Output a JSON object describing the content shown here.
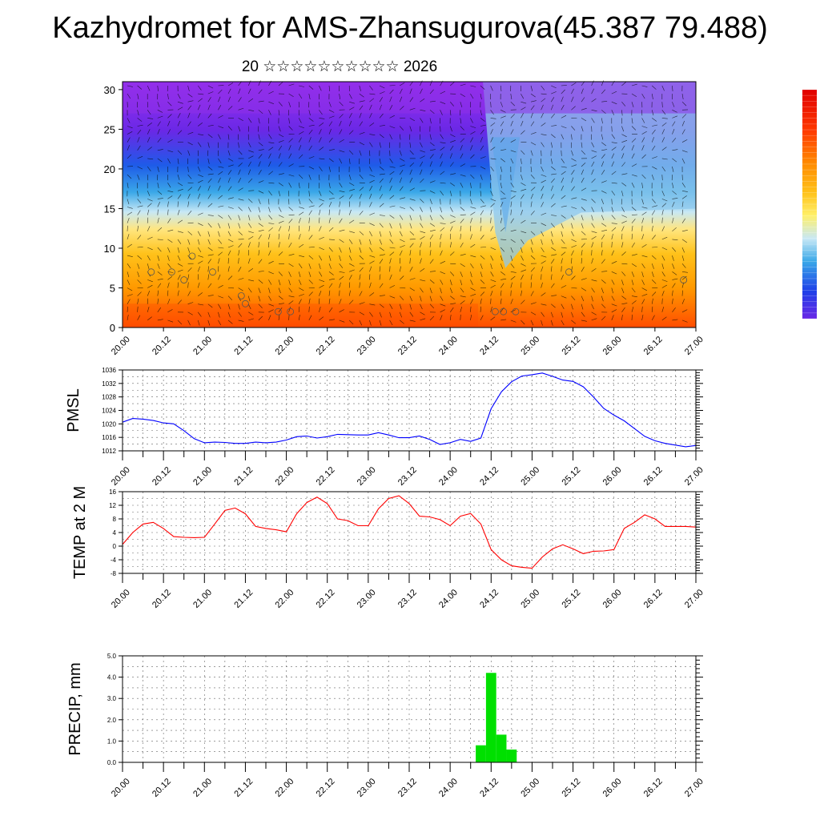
{
  "header": {
    "title": "Kazhydromet for AMS-Zhansugurova(45.387 79.488)",
    "subtitle": "20 ☆☆☆☆☆☆☆☆☆☆ 2026"
  },
  "time_labels": [
    "20.00",
    "20.12",
    "21.00",
    "21.12",
    "22.00",
    "22.12",
    "23.00",
    "23.12",
    "24.00",
    "24.12",
    "25.00",
    "25.12",
    "26.00",
    "26.12",
    "27.00"
  ],
  "colors": {
    "pmsl_line": "#0000ff",
    "temp_line": "#ff0000",
    "precip_bar": "#00e000"
  },
  "chart_data": [
    {
      "type": "heatmap",
      "name": "cross-section",
      "x": [
        "20.00",
        "20.12",
        "21.00",
        "21.12",
        "22.00",
        "22.12",
        "23.00",
        "23.12",
        "24.00",
        "24.12",
        "25.00",
        "25.12",
        "26.00",
        "26.12",
        "27.00"
      ],
      "y_ticks": [
        0,
        5,
        10,
        15,
        20,
        25,
        30
      ],
      "ylim": [
        0,
        31
      ],
      "colorscale": [
        "#ff4d00",
        "#ff9900",
        "#ffc21a",
        "#ffe680",
        "#c8e8f5",
        "#3aa8e8",
        "#1e5be8",
        "#6a28e6",
        "#9a30ee"
      ],
      "colorbar": true,
      "overlay": "wind barbs"
    },
    {
      "type": "line",
      "ylabel": "PMSL",
      "ylim": [
        1012,
        1036
      ],
      "y_ticks": [
        1012,
        1016,
        1020,
        1024,
        1028,
        1032,
        1036
      ],
      "x": [
        0,
        3,
        6,
        9,
        12,
        15,
        18,
        21,
        24,
        27,
        30,
        33,
        36,
        39,
        42,
        45,
        48,
        51,
        54,
        57,
        60,
        63,
        66,
        69,
        72,
        75,
        78,
        81,
        84,
        87,
        90,
        93,
        96,
        99,
        102,
        105,
        108,
        111,
        114,
        117,
        120,
        123,
        126,
        129,
        132,
        135,
        138,
        141,
        144,
        147,
        150,
        153,
        156,
        159,
        162,
        165,
        168
      ],
      "values": [
        1020.5,
        1021.6,
        1021.4,
        1021,
        1020.3,
        1020,
        1018,
        1015.6,
        1014.4,
        1014.6,
        1014.5,
        1014.2,
        1014.2,
        1014.6,
        1014.4,
        1014.6,
        1015.2,
        1016.2,
        1016.4,
        1015.8,
        1016.2,
        1016.9,
        1016.8,
        1016.7,
        1016.7,
        1017.4,
        1016.7,
        1015.9,
        1015.9,
        1016.4,
        1015.4,
        1013.9,
        1014.4,
        1015.4,
        1014.8,
        1015.8,
        1024.5,
        1029.5,
        1032.5,
        1034.2,
        1034.6,
        1035.1,
        1034.1,
        1033,
        1032.6,
        1031,
        1028,
        1024.6,
        1022.6,
        1020.9,
        1018.6,
        1016.3,
        1015,
        1014.2,
        1013.7,
        1013.2,
        1013.6
      ]
    },
    {
      "type": "line",
      "ylabel": "TEMP at 2 M",
      "ylim": [
        -8,
        16
      ],
      "y_ticks": [
        -8,
        -4,
        0,
        4,
        8,
        12,
        16
      ],
      "x": [
        0,
        3,
        6,
        9,
        12,
        15,
        18,
        21,
        24,
        27,
        30,
        33,
        36,
        39,
        42,
        45,
        48,
        51,
        54,
        57,
        60,
        63,
        66,
        69,
        72,
        75,
        78,
        81,
        84,
        87,
        90,
        93,
        96,
        99,
        102,
        105,
        108,
        111,
        114,
        117,
        120,
        123,
        126,
        129,
        132,
        135,
        138,
        141,
        144,
        147,
        150,
        153,
        156,
        159,
        162,
        165,
        168
      ],
      "values": [
        0.5,
        4,
        6.5,
        7,
        5.2,
        2.8,
        2.6,
        2.5,
        2.6,
        6.5,
        10.5,
        11.2,
        9.5,
        5.8,
        5.2,
        4.8,
        4.2,
        9.5,
        12.8,
        14.4,
        12.5,
        8,
        7.5,
        6,
        6,
        11,
        14,
        14.8,
        12.5,
        8.8,
        8.6,
        7.8,
        6,
        8.8,
        9.6,
        6.5,
        -1,
        -4,
        -5.8,
        -6.2,
        -6.5,
        -3.2,
        -0.8,
        0.4,
        -0.8,
        -2.2,
        -1.5,
        -1.4,
        -1,
        5.2,
        7,
        9.2,
        8,
        5.8,
        5.8,
        5.8,
        5.6
      ]
    },
    {
      "type": "bar",
      "ylabel": "PRECIP, mm",
      "ylim": [
        0,
        5
      ],
      "y_ticks": [
        "0.0",
        "1.0",
        "2.0",
        "3.0",
        "4.0",
        "5.0"
      ],
      "x": [
        105,
        108,
        111,
        114
      ],
      "bar_width_hours": 3,
      "values": [
        0.8,
        4.2,
        1.3,
        0.6
      ]
    }
  ]
}
